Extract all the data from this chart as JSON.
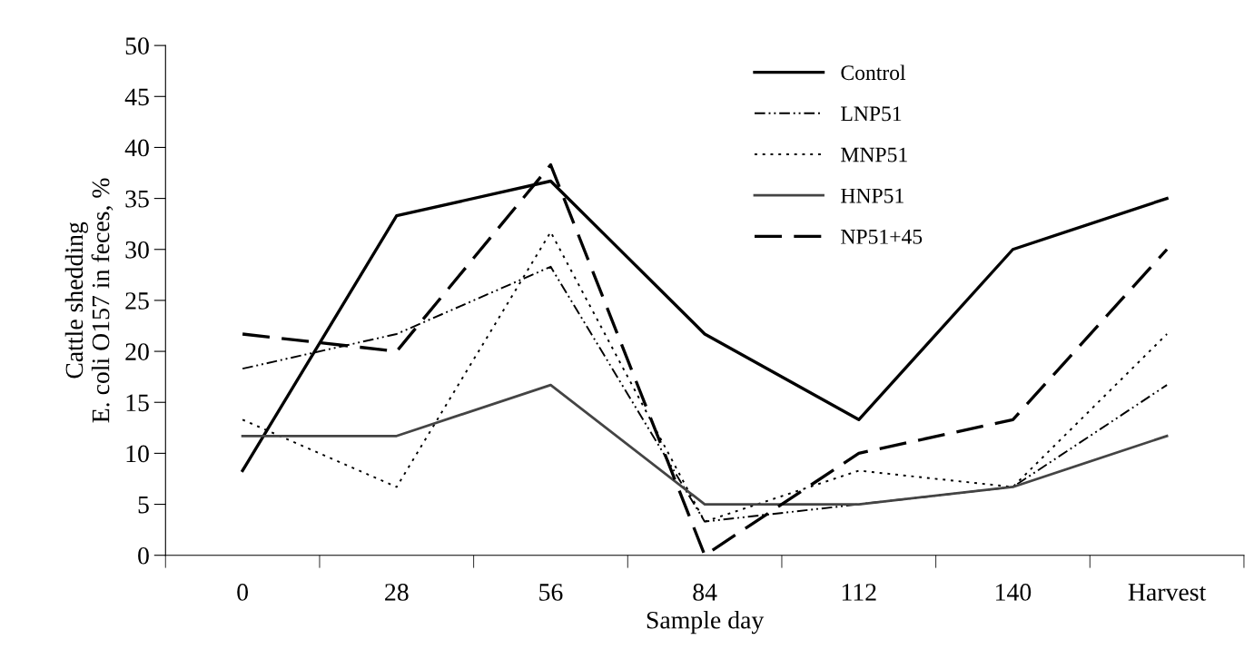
{
  "chart_data": {
    "type": "line",
    "xlabel": "Sample day",
    "ylabel": "Cattle shedding\nE. coli O157 in feces, %",
    "categories": [
      "0",
      "28",
      "56",
      "84",
      "112",
      "140",
      "Harvest"
    ],
    "ylim": [
      0,
      50
    ],
    "yticks": [
      0,
      5,
      10,
      15,
      20,
      25,
      30,
      35,
      40,
      45,
      50
    ],
    "grid": false,
    "legend": "top right",
    "marker": "none",
    "series": [
      {
        "name": "Control",
        "color": "#000000",
        "line_style": "solid",
        "values": [
          8.3,
          33.3,
          36.7,
          21.7,
          13.3,
          30,
          35
        ]
      },
      {
        "name": "LNP51",
        "color": "#000000",
        "line_style": "dashdotdot",
        "values": [
          18.3,
          21.7,
          28.3,
          3.3,
          5,
          6.7,
          16.7
        ]
      },
      {
        "name": "MNP51",
        "color": "#000000",
        "line_style": "dotted",
        "values": [
          13.3,
          6.7,
          31.7,
          3.3,
          8.3,
          6.7,
          21.7
        ]
      },
      {
        "name": "HNP51",
        "color": "#444444",
        "line_style": "solid",
        "values": [
          11.7,
          11.7,
          16.7,
          5,
          5,
          6.7,
          11.7
        ]
      },
      {
        "name": "NP51+45",
        "color": "#000000",
        "line_style": "dashed",
        "values": [
          21.7,
          20,
          38.3,
          0,
          10,
          13.3,
          30
        ]
      }
    ]
  }
}
